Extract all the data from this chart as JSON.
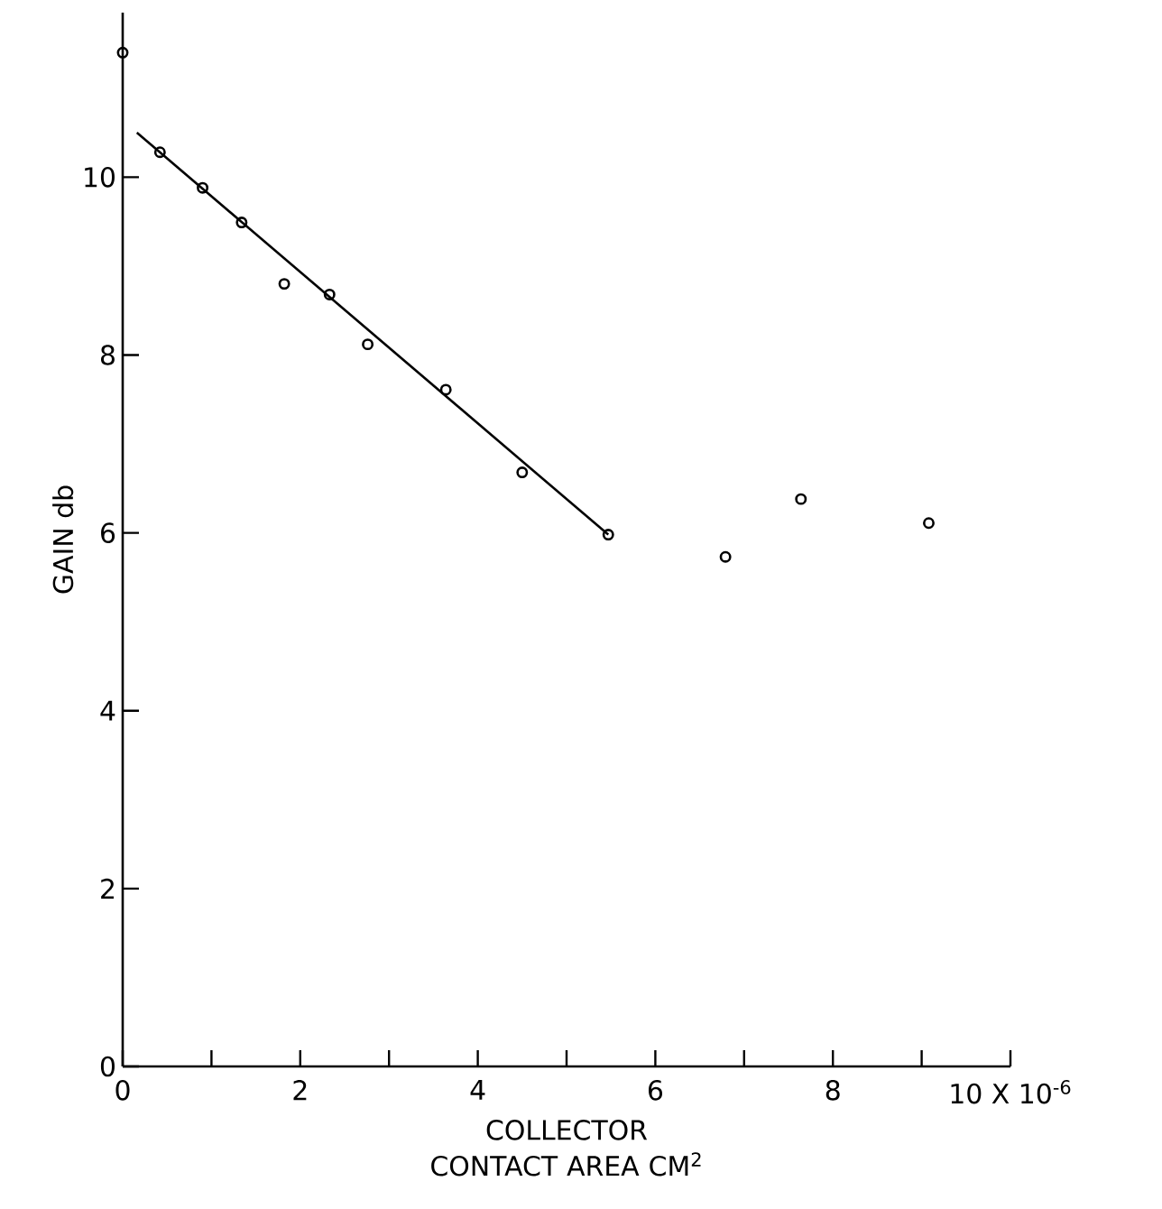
{
  "chart_data": {
    "type": "scatter",
    "xlabel": "COLLECTOR CONTACT AREA CM$^{2}$",
    "ylabel": "GAIN db",
    "xlim": [
      0,
      10
    ],
    "ylim": [
      0,
      11.85
    ],
    "xticks": [
      0,
      {
        "value": 1,
        "label": null
      },
      2,
      {
        "value": 3,
        "label": null
      },
      4,
      {
        "value": 5,
        "label": null
      },
      6,
      {
        "value": 7,
        "label": null
      },
      8,
      {
        "value": 9,
        "label": null
      },
      {
        "value": 10,
        "label": "10 X 10$^{-6}$"
      }
    ],
    "yticks": [
      0,
      2,
      4,
      6,
      8,
      10
    ],
    "series": [
      {
        "color": "#000000",
        "marker": "circle",
        "x": [
          0,
          0.42,
          0.9,
          1.34,
          1.82,
          2.33,
          2.76,
          3.64,
          4.5,
          5.47,
          6.79,
          7.64,
          9.08
        ],
        "values": [
          11.4,
          10.28,
          9.88,
          9.49,
          8.8,
          8.68,
          8.12,
          7.61,
          6.68,
          5.98,
          5.73,
          6.38,
          6.11
        ]
      },
      {
        "type": "line",
        "color": "#000000",
        "marker": "none",
        "x": [
          0.16,
          5.47
        ],
        "values": [
          10.5,
          5.98
        ]
      }
    ]
  }
}
